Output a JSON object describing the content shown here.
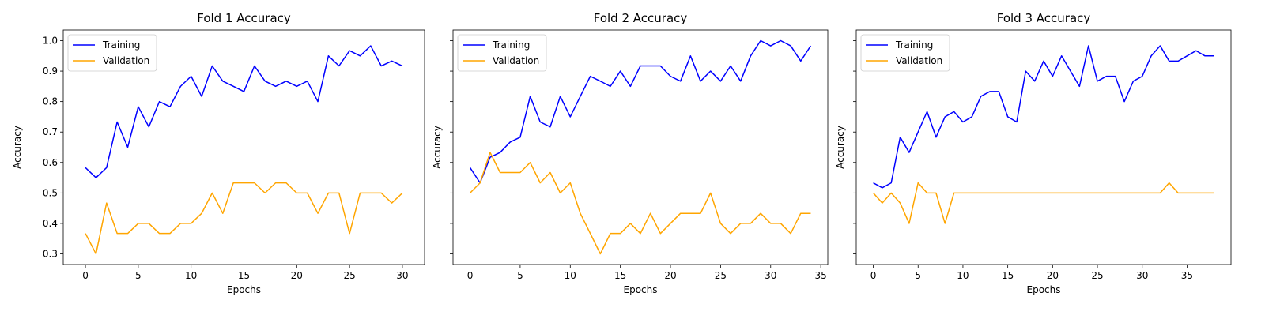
{
  "colors": {
    "training": "#0000ff",
    "validation": "#ffa500",
    "axis": "#000000"
  },
  "chart_data": [
    {
      "type": "line",
      "title": "Fold 1 Accuracy",
      "xlabel": "Epochs",
      "ylabel": "Accuracy",
      "xlim": [
        -2.1,
        32.1
      ],
      "ylim": [
        0.265,
        1.035
      ],
      "xticks": [
        0,
        5,
        10,
        15,
        20,
        25,
        30
      ],
      "yticks": [
        0.3,
        0.4,
        0.5,
        0.6,
        0.7,
        0.8,
        0.9,
        1.0
      ],
      "ytick_labels": [
        "0.3",
        "0.4",
        "0.5",
        "0.6",
        "0.7",
        "0.8",
        "0.9",
        "1.0"
      ],
      "legend": "upper left",
      "series": [
        {
          "name": "Training",
          "color": "training",
          "values": [
            0.583,
            0.55,
            0.583,
            0.733,
            0.65,
            0.783,
            0.717,
            0.8,
            0.783,
            0.85,
            0.883,
            0.817,
            0.917,
            0.867,
            0.85,
            0.833,
            0.917,
            0.867,
            0.85,
            0.867,
            0.85,
            0.867,
            0.8,
            0.95,
            0.917,
            0.967,
            0.95,
            0.983,
            0.917,
            0.933,
            0.917
          ]
        },
        {
          "name": "Validation",
          "color": "validation",
          "values": [
            0.367,
            0.3,
            0.467,
            0.367,
            0.367,
            0.4,
            0.4,
            0.367,
            0.367,
            0.4,
            0.4,
            0.433,
            0.5,
            0.433,
            0.533,
            0.533,
            0.533,
            0.5,
            0.533,
            0.533,
            0.5,
            0.5,
            0.433,
            0.5,
            0.5,
            0.367,
            0.5,
            0.5,
            0.5,
            0.467,
            0.5
          ]
        }
      ]
    },
    {
      "type": "line",
      "title": "Fold 2 Accuracy",
      "xlabel": "Epochs",
      "ylabel": "Accuracy",
      "xlim": [
        -1.7,
        35.7
      ],
      "ylim": [
        0.265,
        1.035
      ],
      "xticks": [
        0,
        5,
        10,
        15,
        20,
        25,
        30,
        35
      ],
      "yticks": [
        0.3,
        0.4,
        0.5,
        0.6,
        0.7,
        0.8,
        0.9,
        1.0
      ],
      "ytick_labels": [],
      "legend": "upper left",
      "series": [
        {
          "name": "Training",
          "color": "training",
          "values": [
            0.583,
            0.533,
            0.617,
            0.633,
            0.667,
            0.683,
            0.817,
            0.733,
            0.717,
            0.817,
            0.75,
            0.817,
            0.883,
            0.867,
            0.85,
            0.9,
            0.85,
            0.917,
            0.917,
            0.917,
            0.883,
            0.867,
            0.95,
            0.867,
            0.9,
            0.867,
            0.917,
            0.867,
            0.95,
            1.0,
            0.983,
            1.0,
            0.983,
            0.933,
            0.983
          ]
        },
        {
          "name": "Validation",
          "color": "validation",
          "values": [
            0.5,
            0.533,
            0.633,
            0.567,
            0.567,
            0.567,
            0.6,
            0.533,
            0.567,
            0.5,
            0.533,
            0.433,
            0.367,
            0.3,
            0.367,
            0.367,
            0.4,
            0.367,
            0.433,
            0.367,
            0.4,
            0.433,
            0.433,
            0.433,
            0.5,
            0.4,
            0.367,
            0.4,
            0.4,
            0.433,
            0.4,
            0.4,
            0.367,
            0.433,
            0.433
          ]
        }
      ]
    },
    {
      "type": "line",
      "title": "Fold 3 Accuracy",
      "xlabel": "Epochs",
      "ylabel": "Accuracy",
      "xlim": [
        -1.9,
        39.9
      ],
      "ylim": [
        0.265,
        1.035
      ],
      "xticks": [
        0,
        5,
        10,
        15,
        20,
        25,
        30,
        35
      ],
      "yticks": [
        0.3,
        0.4,
        0.5,
        0.6,
        0.7,
        0.8,
        0.9,
        1.0
      ],
      "ytick_labels": [],
      "legend": "upper left",
      "series": [
        {
          "name": "Training",
          "color": "training",
          "values": [
            0.533,
            0.517,
            0.533,
            0.683,
            0.633,
            0.7,
            0.767,
            0.683,
            0.75,
            0.767,
            0.733,
            0.75,
            0.817,
            0.833,
            0.833,
            0.75,
            0.733,
            0.9,
            0.867,
            0.933,
            0.883,
            0.95,
            0.9,
            0.85,
            0.983,
            0.867,
            0.883,
            0.883,
            0.8,
            0.867,
            0.883,
            0.95,
            0.983,
            0.933,
            0.933,
            0.95,
            0.967,
            0.95,
            0.95
          ]
        },
        {
          "name": "Validation",
          "color": "validation",
          "values": [
            0.5,
            0.467,
            0.5,
            0.467,
            0.4,
            0.533,
            0.5,
            0.5,
            0.4,
            0.5,
            0.5,
            0.5,
            0.5,
            0.5,
            0.5,
            0.5,
            0.5,
            0.5,
            0.5,
            0.5,
            0.5,
            0.5,
            0.5,
            0.5,
            0.5,
            0.5,
            0.5,
            0.5,
            0.5,
            0.5,
            0.5,
            0.5,
            0.5,
            0.533,
            0.5,
            0.5,
            0.5,
            0.5,
            0.5
          ]
        }
      ]
    }
  ]
}
